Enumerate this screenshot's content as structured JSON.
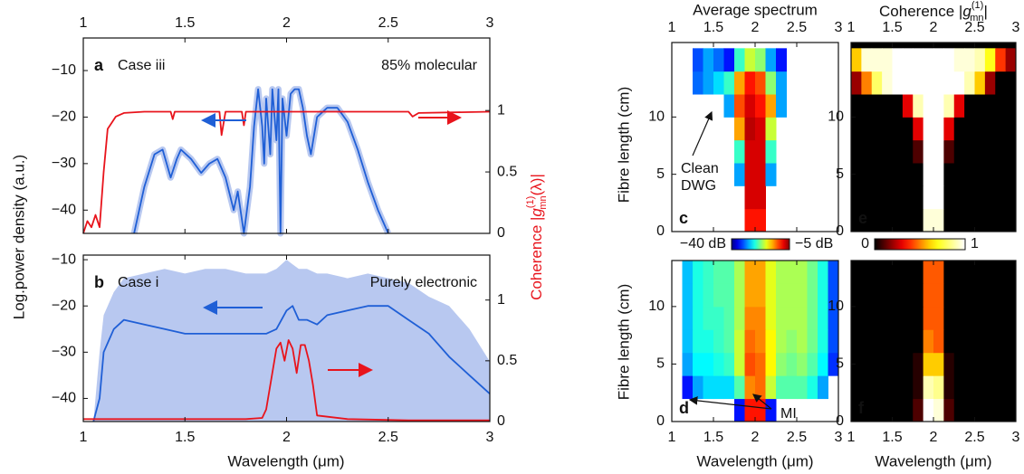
{
  "chart_data": [
    {
      "type": "line",
      "label": "a",
      "title": "Case iii",
      "annotation": "85% molecular",
      "xlim": [
        1,
        3
      ],
      "xticks": [
        1,
        1.5,
        2,
        2.5,
        3
      ],
      "xtick_labels": "top",
      "ylim": [
        -45,
        -3
      ],
      "yticks": [
        {
          "value": -10,
          "label": "−10"
        },
        {
          "value": -20,
          "label": "−20"
        },
        {
          "value": -30,
          "label": "−30"
        },
        {
          "value": -40,
          "label": "−40"
        }
      ],
      "y2lim": [
        0,
        1.59
      ],
      "y2ticks": [
        0,
        0.5,
        1
      ],
      "ylabel": "Log.power density (a.u.)",
      "y2label_parts": [
        "Coherence |",
        "g",
        "(1)",
        "mn",
        "(λ)|"
      ],
      "series": [
        {
          "color": "#1f5fd6",
          "band_color": "#b8c8f0",
          "x": [
            1.25,
            1.3,
            1.35,
            1.39,
            1.43,
            1.46,
            1.48,
            1.53,
            1.58,
            1.62,
            1.66,
            1.7,
            1.74,
            1.76,
            1.79,
            1.82,
            1.84,
            1.86,
            1.88,
            1.89,
            1.9,
            1.92,
            1.93,
            1.95,
            1.96,
            1.97,
            1.98,
            2.0,
            2.02,
            2.04,
            2.06,
            2.08,
            2.1,
            2.12,
            2.15,
            2.2,
            2.25,
            2.3,
            2.35,
            2.4,
            2.45,
            2.5
          ],
          "values": [
            -45,
            -35,
            -28,
            -27,
            -33,
            -29,
            -27,
            -29,
            -32,
            -30,
            -29,
            -33,
            -40,
            -36,
            -45,
            -35,
            -22,
            -14,
            -22,
            -30,
            -16,
            -28,
            -14,
            -25,
            -14,
            -45,
            -16,
            -24,
            -15,
            -14,
            -14,
            -18,
            -24,
            -28,
            -20,
            -18,
            -18,
            -21,
            -27,
            -34,
            -40,
            -45
          ]
        },
        {
          "color": "#e8141c",
          "axis": "y2",
          "x": [
            1.0,
            1.02,
            1.04,
            1.06,
            1.08,
            1.1,
            1.12,
            1.14,
            1.16,
            1.2,
            1.3,
            1.43,
            1.44,
            1.45,
            1.67,
            1.68,
            1.7,
            1.78,
            1.79,
            1.8,
            2.0,
            2.6,
            2.62,
            2.65,
            3.0
          ],
          "values": [
            0,
            0.1,
            0.05,
            0.15,
            0.05,
            0.5,
            0.85,
            0.9,
            0.95,
            0.98,
            0.99,
            0.99,
            0.93,
            0.99,
            0.99,
            0.8,
            0.99,
            0.99,
            0.88,
            0.99,
            0.99,
            0.99,
            0.95,
            0.98,
            0.99
          ]
        }
      ]
    },
    {
      "type": "line",
      "label": "b",
      "title": "Case i",
      "annotation": "Purely electronic",
      "xlim": [
        1,
        3
      ],
      "xticks": [
        1,
        1.5,
        2,
        2.5,
        3
      ],
      "xtick_labels": "bottom",
      "xlabel": "Wavelength (μm)",
      "ylim": [
        -45,
        -9
      ],
      "yticks": [
        {
          "value": -10,
          "label": "−10"
        },
        {
          "value": -20,
          "label": "−20"
        },
        {
          "value": -30,
          "label": "−30"
        },
        {
          "value": -40,
          "label": "−40"
        }
      ],
      "y2lim": [
        0,
        1.37
      ],
      "y2ticks": [
        0,
        0.5,
        1
      ],
      "series": [
        {
          "color": "#1f5fd6",
          "band_color": "#b8c8f0",
          "x": [
            1.05,
            1.08,
            1.1,
            1.15,
            1.2,
            1.3,
            1.4,
            1.5,
            1.6,
            1.7,
            1.8,
            1.9,
            1.95,
            2.0,
            2.03,
            2.06,
            2.1,
            2.15,
            2.2,
            2.3,
            2.4,
            2.5,
            2.6,
            2.7,
            2.8,
            2.9,
            3.0
          ],
          "values": [
            -45,
            -40,
            -30,
            -25,
            -23,
            -24,
            -25,
            -26,
            -26,
            -26,
            -26,
            -26,
            -25,
            -21,
            -20,
            -23,
            -23,
            -24,
            -22,
            -21,
            -20,
            -20,
            -23,
            -26,
            -31,
            -35,
            -39
          ],
          "upper": [
            -45,
            -30,
            -22,
            -17,
            -14,
            -13,
            -12,
            -13,
            -12,
            -12,
            -13,
            -13,
            -12,
            -10,
            -11,
            -12,
            -12,
            -13,
            -13,
            -14,
            -13,
            -14,
            -15,
            -18,
            -20,
            -25,
            -32
          ]
        },
        {
          "color": "#e8141c",
          "axis": "y2",
          "x": [
            1.0,
            1.2,
            1.4,
            1.6,
            1.8,
            1.88,
            1.9,
            1.95,
            1.97,
            1.99,
            2.01,
            2.03,
            2.05,
            2.07,
            2.09,
            2.11,
            2.13,
            2.15,
            2.3,
            2.6,
            3.0
          ],
          "values": [
            0.02,
            0.02,
            0.02,
            0.02,
            0.02,
            0.03,
            0.1,
            0.6,
            0.65,
            0.5,
            0.67,
            0.6,
            0.4,
            0.63,
            0.63,
            0.5,
            0.3,
            0.05,
            0.02,
            0.01,
            0.01
          ]
        }
      ]
    },
    {
      "type": "heatmap",
      "label": "c",
      "title": "Average spectrum",
      "xlim": [
        1,
        3
      ],
      "xticks": [
        1,
        1.5,
        2,
        2.5,
        3
      ],
      "xtick_labels": "top",
      "ylim": [
        0,
        16.5
      ],
      "yticks": [
        0,
        5,
        10
      ],
      "ylabel": "Fibre length (cm)",
      "colormap": "jet",
      "background": "#ffffff",
      "clim": [
        -40,
        -5
      ],
      "colorbar_ticks": [
        {
          "value": -40,
          "label": "−40 dB"
        },
        {
          "value": -5,
          "label": "−5 dB"
        }
      ],
      "annotation_lines": [
        "Clean",
        "DWG"
      ],
      "xbins": [
        1,
        1.125,
        1.25,
        1.375,
        1.5,
        1.625,
        1.75,
        1.875,
        2,
        2.125,
        2.25,
        2.375,
        2.5,
        2.625,
        2.75,
        2.875,
        3
      ],
      "ybins": [
        0,
        2,
        4,
        6,
        8,
        10,
        12,
        14,
        16
      ],
      "values": [
        [
          null,
          null,
          null,
          null,
          null,
          null,
          null,
          -10,
          -10,
          null,
          null,
          null,
          null,
          null,
          null,
          null
        ],
        [
          null,
          null,
          null,
          null,
          null,
          null,
          null,
          -8,
          -8,
          null,
          null,
          null,
          null,
          null,
          null,
          null
        ],
        [
          null,
          null,
          null,
          null,
          null,
          null,
          -30,
          -8,
          -8,
          -30,
          null,
          null,
          null,
          null,
          null,
          null
        ],
        [
          null,
          null,
          null,
          null,
          null,
          null,
          -25,
          -8,
          -8,
          -25,
          null,
          null,
          null,
          null,
          null,
          null
        ],
        [
          null,
          null,
          null,
          null,
          null,
          null,
          -15,
          -7,
          -8,
          -20,
          null,
          null,
          null,
          null,
          null,
          null
        ],
        [
          null,
          null,
          null,
          null,
          null,
          -30,
          -12,
          -8,
          -10,
          -15,
          -30,
          null,
          null,
          null,
          null,
          null
        ],
        [
          null,
          null,
          -32,
          -30,
          -28,
          -25,
          -15,
          -10,
          -12,
          -22,
          -30,
          null,
          null,
          null,
          null,
          null
        ],
        [
          null,
          null,
          -33,
          -30,
          -32,
          -35,
          -25,
          -20,
          -22,
          -30,
          -35,
          null,
          null,
          null,
          null,
          null
        ]
      ]
    },
    {
      "type": "heatmap",
      "label": "d",
      "xlim": [
        1,
        3
      ],
      "xticks": [
        1,
        1.5,
        2,
        2.5,
        3
      ],
      "xtick_labels": "bottom",
      "xlabel": "Wavelength (μm)",
      "ylim": [
        0,
        14
      ],
      "yticks": [
        0,
        5,
        10
      ],
      "ylabel": "Fibre length (cm)",
      "colormap": "jet",
      "background": "#ffffff",
      "clim": [
        -40,
        -5
      ],
      "annotation": "MI",
      "xbins": [
        1,
        1.125,
        1.25,
        1.375,
        1.5,
        1.625,
        1.75,
        1.875,
        2,
        2.125,
        2.25,
        2.375,
        2.5,
        2.625,
        2.75,
        2.875,
        3
      ],
      "ybins": [
        0,
        2,
        4,
        6,
        8,
        10,
        12,
        14
      ],
      "values": [
        [
          null,
          null,
          null,
          null,
          null,
          null,
          -35,
          -10,
          -10,
          -35,
          null,
          null,
          null,
          null,
          null,
          null
        ],
        [
          null,
          -35,
          -30,
          -28,
          -28,
          -28,
          -24,
          -14,
          -13,
          -20,
          -24,
          -24,
          -24,
          -26,
          -30,
          null
        ],
        [
          null,
          -30,
          -27,
          -27,
          -26,
          -25,
          -20,
          -12,
          -13,
          -18,
          -22,
          -23,
          -22,
          -24,
          -27,
          -34
        ],
        [
          null,
          -29,
          -26,
          -26,
          -25,
          -24,
          -20,
          -13,
          -14,
          -18,
          -21,
          -22,
          -21,
          -23,
          -26,
          -33
        ],
        [
          null,
          -29,
          -26,
          -25,
          -25,
          -24,
          -21,
          -14,
          -14,
          -19,
          -21,
          -21,
          -21,
          -23,
          -26,
          -33
        ],
        [
          null,
          -29,
          -26,
          -25,
          -24,
          -24,
          -21,
          -15,
          -15,
          -19,
          -21,
          -21,
          -21,
          -23,
          -26,
          -33
        ],
        [
          null,
          -29,
          -26,
          -25,
          -24,
          -24,
          -21,
          -15,
          -15,
          -19,
          -21,
          -21,
          -21,
          -23,
          -26,
          -33
        ]
      ]
    },
    {
      "type": "heatmap",
      "label": "e",
      "title_parts": [
        "Coherence |",
        "g",
        "(1)",
        "mn",
        "|"
      ],
      "xlim": [
        1,
        3
      ],
      "xticks": [
        1,
        1.5,
        2,
        2.5,
        3
      ],
      "xtick_labels": "top",
      "ylim": [
        0,
        16.5
      ],
      "yticks": [
        0,
        5,
        10
      ],
      "colormap": "hot",
      "background": "#000000",
      "clim": [
        0,
        1
      ],
      "colorbar_ticks": [
        0,
        1
      ],
      "xbins": [
        1,
        1.125,
        1.25,
        1.375,
        1.5,
        1.625,
        1.75,
        1.875,
        2,
        2.125,
        2.25,
        2.375,
        2.5,
        2.625,
        2.75,
        2.875,
        3
      ],
      "ybins": [
        0,
        2,
        4,
        6,
        8,
        10,
        12,
        14,
        16
      ],
      "values": [
        [
          0,
          0,
          0,
          0,
          0,
          0,
          0,
          0.95,
          0.95,
          0,
          0,
          0,
          0,
          0,
          0,
          0
        ],
        [
          0,
          0,
          0,
          0,
          0,
          0,
          0,
          1,
          1,
          0,
          0,
          0,
          0,
          0,
          0,
          0
        ],
        [
          0,
          0,
          0,
          0,
          0,
          0,
          0,
          1,
          1,
          0,
          0,
          0,
          0,
          0,
          0,
          0
        ],
        [
          0,
          0,
          0,
          0,
          0,
          0,
          0.1,
          1,
          1,
          0.1,
          0,
          0,
          0,
          0,
          0,
          0
        ],
        [
          0,
          0,
          0,
          0,
          0,
          0,
          0.3,
          1,
          1,
          0.3,
          0,
          0,
          0,
          0,
          0,
          0
        ],
        [
          0,
          0,
          0,
          0,
          0,
          0.3,
          0.9,
          1,
          1,
          0.9,
          0.3,
          0,
          0,
          0,
          0,
          0
        ],
        [
          0.2,
          0.5,
          0.8,
          0.95,
          1,
          1,
          1,
          1,
          1,
          1,
          1,
          0.9,
          0.6,
          0.2,
          0,
          0
        ],
        [
          0.6,
          0.95,
          0.95,
          0.95,
          1,
          1,
          1,
          1,
          1,
          1,
          0.95,
          0.95,
          0.9,
          0.7,
          0.4,
          0.2
        ]
      ]
    },
    {
      "type": "heatmap",
      "label": "f",
      "xlim": [
        1,
        3
      ],
      "xticks": [
        1,
        1.5,
        2,
        2.5,
        3
      ],
      "xtick_labels": "bottom",
      "xlabel": "Wavelength (μm)",
      "ylim": [
        0,
        14
      ],
      "yticks": [
        0,
        5,
        10
      ],
      "colormap": "hot",
      "background": "#000000",
      "clim": [
        0,
        1
      ],
      "xbins": [
        1,
        1.125,
        1.25,
        1.375,
        1.5,
        1.625,
        1.75,
        1.875,
        2,
        2.125,
        2.25,
        2.375,
        2.5,
        2.625,
        2.75,
        2.875,
        3
      ],
      "ybins": [
        0,
        2,
        4,
        6,
        8,
        10,
        12,
        14
      ],
      "values": [
        [
          0,
          0,
          0,
          0,
          0,
          0,
          0.1,
          1,
          0.95,
          0.1,
          0,
          0,
          0,
          0,
          0,
          0
        ],
        [
          0,
          0,
          0,
          0,
          0,
          0,
          0.05,
          0.9,
          0.85,
          0.05,
          0,
          0,
          0,
          0,
          0,
          0
        ],
        [
          0,
          0,
          0,
          0,
          0,
          0,
          0.05,
          0.6,
          0.6,
          0.05,
          0,
          0,
          0,
          0,
          0,
          0
        ],
        [
          0,
          0,
          0,
          0,
          0,
          0,
          0,
          0.5,
          0.45,
          0,
          0,
          0,
          0,
          0,
          0,
          0
        ],
        [
          0,
          0,
          0,
          0,
          0,
          0,
          0,
          0.45,
          0.45,
          0,
          0,
          0,
          0,
          0,
          0,
          0
        ],
        [
          0,
          0,
          0,
          0,
          0,
          0,
          0,
          0.45,
          0.45,
          0,
          0,
          0,
          0,
          0,
          0,
          0
        ],
        [
          0,
          0,
          0,
          0,
          0,
          0,
          0,
          0.45,
          0.45,
          0,
          0,
          0,
          0,
          0,
          0,
          0
        ]
      ]
    }
  ]
}
